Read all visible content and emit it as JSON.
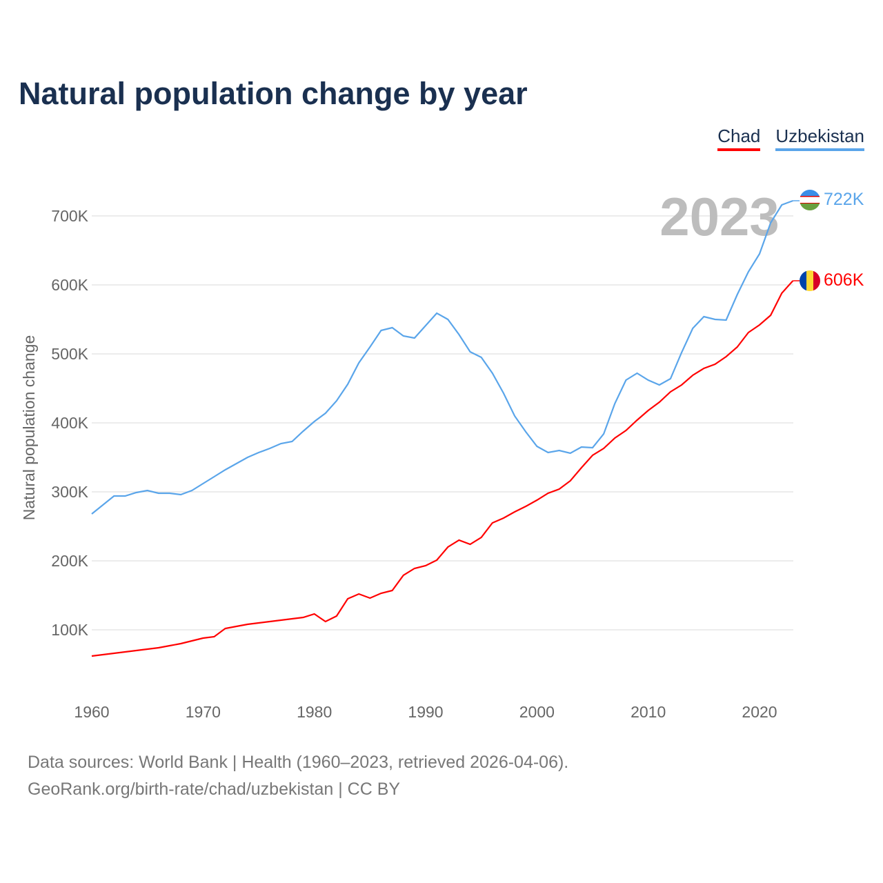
{
  "title": "Natural population change by year",
  "legend": [
    {
      "name": "Chad",
      "color": "#ff0000"
    },
    {
      "name": "Uzbekistan",
      "color": "#5aa5ea"
    }
  ],
  "year_watermark": "2023",
  "end_labels": {
    "chad": "606K",
    "uzbekistan": "722K"
  },
  "footer": {
    "line1": "Data sources: World Bank | Health (1960–2023, retrieved 2026-04-06).",
    "line2": "GeoRank.org/birth-rate/chad/uzbekistan | CC BY"
  },
  "chart_data": {
    "type": "line",
    "title": "Natural population change by year",
    "xlabel": "",
    "ylabel": "Natural population change",
    "xlim": [
      1960,
      2023
    ],
    "ylim": [
      0,
      760000
    ],
    "xticks": [
      1960,
      1970,
      1980,
      1990,
      2000,
      2010,
      2020
    ],
    "xtick_labels": [
      "1960",
      "1970",
      "1980",
      "1990",
      "2000",
      "2010",
      "2020"
    ],
    "yticks": [
      100000,
      200000,
      300000,
      400000,
      500000,
      600000,
      700000
    ],
    "ytick_labels": [
      "100K",
      "200K",
      "300K",
      "400K",
      "500K",
      "600K",
      "700K"
    ],
    "grid": true,
    "legend_position": "top-right",
    "x": [
      1960,
      1961,
      1962,
      1963,
      1964,
      1965,
      1966,
      1967,
      1968,
      1969,
      1970,
      1971,
      1972,
      1973,
      1974,
      1975,
      1976,
      1977,
      1978,
      1979,
      1980,
      1981,
      1982,
      1983,
      1984,
      1985,
      1986,
      1987,
      1988,
      1989,
      1990,
      1991,
      1992,
      1993,
      1994,
      1995,
      1996,
      1997,
      1998,
      1999,
      2000,
      2001,
      2002,
      2003,
      2004,
      2005,
      2006,
      2007,
      2008,
      2009,
      2010,
      2011,
      2012,
      2013,
      2014,
      2015,
      2016,
      2017,
      2018,
      2019,
      2020,
      2021,
      2022,
      2023
    ],
    "series": [
      {
        "name": "Chad",
        "color": "#ff0000",
        "values": [
          62000,
          64000,
          66000,
          68000,
          70000,
          72000,
          74000,
          77000,
          80000,
          84000,
          88000,
          90000,
          102000,
          105000,
          108000,
          110000,
          112000,
          114000,
          116000,
          118000,
          123000,
          112000,
          120000,
          145000,
          152000,
          146000,
          153000,
          157000,
          179000,
          189000,
          193000,
          201000,
          220000,
          230000,
          224000,
          234000,
          255000,
          262000,
          271000,
          279000,
          288000,
          298000,
          304000,
          316000,
          335000,
          353000,
          363000,
          378000,
          389000,
          404000,
          418000,
          430000,
          445000,
          455000,
          469000,
          479000,
          485000,
          496000,
          510000,
          531000,
          542000,
          556000,
          588000,
          606000
        ]
      },
      {
        "name": "Uzbekistan",
        "color": "#5aa5ea",
        "values": [
          268000,
          281000,
          294000,
          294000,
          299000,
          302000,
          298000,
          298000,
          296000,
          302000,
          312000,
          322000,
          332000,
          341000,
          350000,
          357000,
          363000,
          370000,
          373000,
          388000,
          402000,
          414000,
          432000,
          456000,
          487000,
          510000,
          534000,
          538000,
          526000,
          523000,
          541000,
          559000,
          550000,
          528000,
          503000,
          495000,
          472000,
          443000,
          410000,
          387000,
          366000,
          357000,
          360000,
          356000,
          365000,
          364000,
          384000,
          428000,
          462000,
          472000,
          462000,
          455000,
          464000,
          502000,
          537000,
          554000,
          550000,
          549000,
          586000,
          619000,
          645000,
          690000,
          716000,
          722000
        ]
      }
    ]
  }
}
